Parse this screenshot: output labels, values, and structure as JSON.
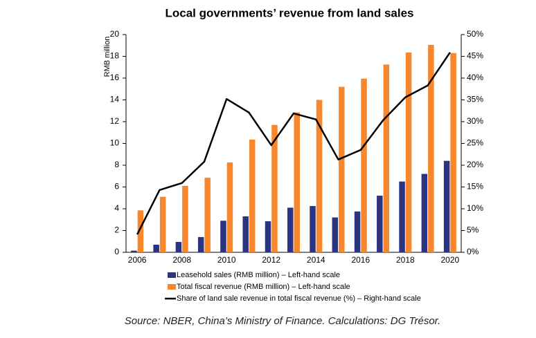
{
  "chart_data": {
    "type": "bar",
    "title": "Local governments’ revenue from land sales",
    "y_label": "RMB million",
    "source": "Source: NBER, China’s Ministry of Finance. Calculations: DG Trésor.",
    "categories": [
      "2006",
      null,
      "2008",
      null,
      "2010",
      null,
      "2012",
      null,
      "2014",
      null,
      "2016",
      null,
      "2018",
      null,
      "2020"
    ],
    "series": [
      {
        "name": "Leasehold sales (RMB million) – Left-hand scale",
        "type": "bar",
        "color": "#2b3481",
        "values": [
          0.15,
          0.7,
          0.95,
          1.4,
          2.9,
          3.3,
          2.85,
          4.1,
          4.25,
          3.2,
          3.75,
          5.2,
          6.5,
          7.2,
          8.4
        ]
      },
      {
        "name": "Total fiscal revenue (RMB million) – Left-hand scale",
        "type": "bar",
        "color": "#f7862c",
        "values": [
          3.85,
          5.1,
          6.1,
          6.85,
          8.25,
          10.35,
          11.7,
          12.85,
          14.0,
          15.2,
          15.95,
          17.25,
          18.35,
          19.05,
          18.3
        ]
      },
      {
        "name": "Share of land sale revenue in total fiscal revenue (%) – Right-hand scale",
        "type": "line",
        "axis": "y2",
        "color": "#000000",
        "values": [
          4.1,
          14.3,
          15.9,
          20.8,
          35.2,
          32.1,
          24.6,
          31.9,
          30.5,
          21.3,
          23.5,
          30.3,
          35.6,
          38.3,
          45.9
        ]
      }
    ],
    "ylim": [
      0,
      20
    ],
    "yticks": [
      0,
      2,
      4,
      6,
      8,
      10,
      12,
      14,
      16,
      18,
      20
    ],
    "y2lim": [
      0,
      50
    ],
    "y2ticks": [
      {
        "value": 0,
        "label": "0%"
      },
      {
        "value": 5,
        "label": "5%"
      },
      {
        "value": 10,
        "label": "10%"
      },
      {
        "value": 15,
        "label": "15%"
      },
      {
        "value": 20,
        "label": "20%"
      },
      {
        "value": 25,
        "label": "25%"
      },
      {
        "value": 30,
        "label": "30%"
      },
      {
        "value": 35,
        "label": "35%"
      },
      {
        "value": 40,
        "label": "40%"
      },
      {
        "value": 45,
        "label": "45%"
      },
      {
        "value": 50,
        "label": "50%"
      }
    ],
    "grid": false
  }
}
